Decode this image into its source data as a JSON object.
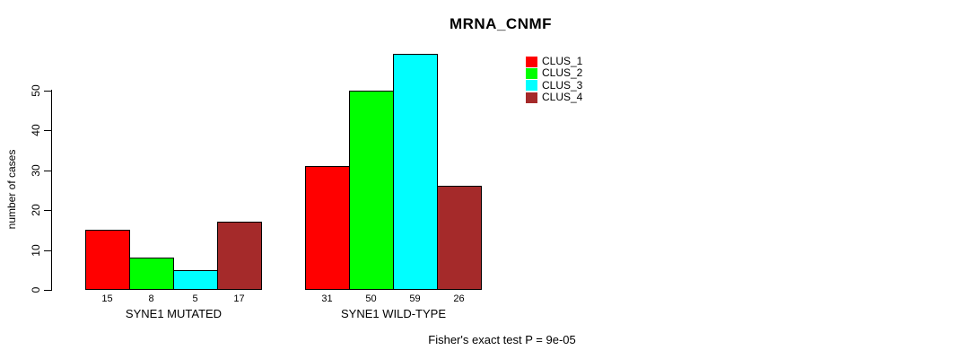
{
  "chart_data": {
    "type": "bar",
    "title": "MRNA_CNMF",
    "ylabel": "number of cases",
    "yticks": [
      0,
      10,
      20,
      30,
      40,
      50
    ],
    "ylim": [
      0,
      59
    ],
    "grid": false,
    "legend_position": "top-right",
    "categories": [
      "SYNE1 MUTATED",
      "SYNE1 WILD-TYPE"
    ],
    "series": [
      {
        "name": "CLUS_1",
        "color": "#FF0000",
        "values": [
          15,
          31
        ]
      },
      {
        "name": "CLUS_2",
        "color": "#00FF00",
        "values": [
          8,
          50
        ]
      },
      {
        "name": "CLUS_3",
        "color": "#00FFFF",
        "values": [
          5,
          59
        ]
      },
      {
        "name": "CLUS_4",
        "color": "#A52A2A",
        "values": [
          17,
          26
        ]
      }
    ],
    "bar_value_labels": true,
    "annotation": "Fisher's exact test P = 9e-05"
  }
}
